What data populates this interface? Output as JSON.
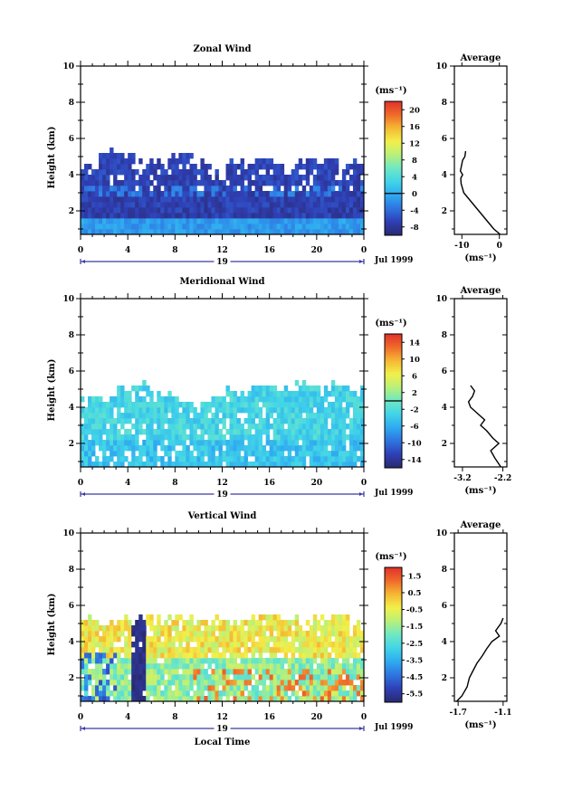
{
  "chart_data": [
    {
      "type": "heatmap",
      "title": "Zonal Wind",
      "ylabel": "Height (km)",
      "x_ticks": [
        "0",
        "4",
        "8",
        "12",
        "16",
        "20",
        "0"
      ],
      "y_ticks": [
        "2",
        "4",
        "6",
        "8",
        "10"
      ],
      "ylim": [
        0.7,
        10
      ],
      "xlim": [
        0,
        24
      ],
      "date_label": "19",
      "month_label": "Jul 1999",
      "colorbar_unit": "(ms⁻¹)",
      "colorbar_ticks": [
        "20",
        "16",
        "12",
        "8",
        "4",
        "0",
        "-4",
        "-8"
      ],
      "colorbar_range": [
        -10,
        22
      ],
      "colorbar_zero": 0,
      "data_top_km": [
        4.2,
        5.1,
        4.8,
        4.5,
        4.6,
        4.9,
        4.7,
        4.3,
        4.4,
        4.6,
        4.5,
        4.4,
        4.7,
        4.8,
        4.6,
        4.5
      ],
      "field": "zonal",
      "profile": {
        "title": "Average",
        "xlabel": "(ms⁻¹)",
        "x_ticks": [
          "-10",
          "0"
        ],
        "xlim": [
          -12,
          2
        ],
        "heights": [
          0.7,
          1.0,
          1.5,
          2.0,
          2.5,
          3.0,
          3.5,
          3.8,
          4.0,
          4.2,
          4.5,
          4.8,
          5.0,
          5.3
        ],
        "values": [
          0.2,
          -1.5,
          -3.5,
          -5.5,
          -7.5,
          -9.5,
          -10.2,
          -10.3,
          -9.8,
          -10.4,
          -10.1,
          -9.8,
          -9.2,
          -9.0
        ]
      }
    },
    {
      "type": "heatmap",
      "title": "Meridional Wind",
      "ylabel": "Height (km)",
      "x_ticks": [
        "0",
        "4",
        "8",
        "12",
        "16",
        "20",
        "0"
      ],
      "y_ticks": [
        "2",
        "4",
        "6",
        "8",
        "10"
      ],
      "ylim": [
        0.7,
        10
      ],
      "xlim": [
        0,
        24
      ],
      "date_label": "19",
      "month_label": "Jul 1999",
      "colorbar_unit": "(ms⁻¹)",
      "colorbar_ticks": [
        "14",
        "10",
        "6",
        "2",
        "-2",
        "-6",
        "-10",
        "-14"
      ],
      "colorbar_range": [
        -16,
        16
      ],
      "colorbar_zero": 0,
      "data_top_km": [
        4.3,
        4.4,
        4.9,
        5.1,
        4.6,
        4.3,
        4.0,
        4.5,
        4.7,
        4.9,
        5.0,
        4.8,
        5.1,
        4.9,
        5.0,
        4.8
      ],
      "field": "meridional",
      "profile": {
        "title": "Average",
        "xlabel": "(ms⁻¹)",
        "x_ticks": [
          "-3.2",
          "-2.2"
        ],
        "xlim": [
          -3.4,
          -2.1
        ],
        "heights": [
          0.7,
          1.2,
          1.6,
          2.0,
          2.3,
          2.7,
          3.0,
          3.3,
          3.7,
          4.0,
          4.3,
          4.6,
          4.9,
          5.2
        ],
        "values": [
          -2.25,
          -2.4,
          -2.5,
          -2.3,
          -2.45,
          -2.6,
          -2.75,
          -2.65,
          -2.85,
          -3.0,
          -3.05,
          -2.95,
          -2.9,
          -3.0
        ]
      }
    },
    {
      "type": "heatmap",
      "title": "Vertical Wind",
      "ylabel": "Height (km)",
      "xlabel": "Local Time",
      "x_ticks": [
        "0",
        "4",
        "8",
        "12",
        "16",
        "20",
        "0"
      ],
      "y_ticks": [
        "2",
        "4",
        "6",
        "8",
        "10"
      ],
      "ylim": [
        0.7,
        10
      ],
      "xlim": [
        0,
        24
      ],
      "date_label": "19",
      "month_label": "Jul 1999",
      "colorbar_unit": "(ms⁻¹)",
      "colorbar_ticks": [
        "1.5",
        "0.5",
        "-0.5",
        "-1.5",
        "-2.5",
        "-3.5",
        "-4.5",
        "-5.5"
      ],
      "colorbar_range": [
        -6,
        2
      ],
      "data_top_km": [
        5.2,
        5.0,
        5.3,
        5.4,
        5.1,
        5.2,
        5.0,
        5.1,
        5.0,
        5.2,
        5.3,
        5.1,
        5.0,
        5.2,
        5.3,
        5.1
      ],
      "field": "vertical",
      "profile": {
        "title": "Average",
        "xlabel": "(ms⁻¹)",
        "x_ticks": [
          "-1.7",
          "-1.1"
        ],
        "xlim": [
          -1.75,
          -1.05
        ],
        "heights": [
          0.7,
          1.0,
          1.5,
          2.0,
          2.4,
          2.8,
          3.2,
          3.6,
          4.0,
          4.3,
          4.6,
          5.0,
          5.3
        ],
        "values": [
          -1.72,
          -1.65,
          -1.58,
          -1.55,
          -1.5,
          -1.45,
          -1.38,
          -1.32,
          -1.25,
          -1.15,
          -1.2,
          -1.13,
          -1.1
        ]
      }
    }
  ],
  "colors": {
    "jet": [
      "#2a2a6e",
      "#2f3fb5",
      "#2f74e0",
      "#2fa9f0",
      "#41d4e8",
      "#6ee8c4",
      "#b8f07a",
      "#f2f04a",
      "#f5b834",
      "#f06a2a",
      "#e0302a"
    ]
  }
}
